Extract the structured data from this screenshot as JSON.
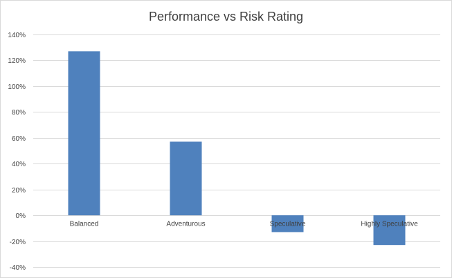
{
  "chart_data": {
    "type": "bar",
    "title": "Performance vs Risk Rating",
    "categories": [
      "Balanced",
      "Adventurous",
      "Speculative",
      "Highly Speculative"
    ],
    "series": [
      {
        "values": [
          1.27,
          0.57,
          -0.13,
          -0.23
        ],
        "color": "#4f81bd"
      }
    ],
    "ylim": [
      -0.4,
      1.4
    ],
    "yticks": [
      -0.4,
      -0.2,
      0,
      0.2,
      0.4,
      0.6,
      0.8,
      1.0,
      1.2,
      1.4
    ],
    "ytick_labels": [
      "-40%",
      "-20%",
      "0%",
      "20%",
      "40%",
      "60%",
      "80%",
      "100%",
      "120%",
      "140%"
    ],
    "grid": true,
    "legend": "none",
    "xlabel": "",
    "ylabel": ""
  }
}
